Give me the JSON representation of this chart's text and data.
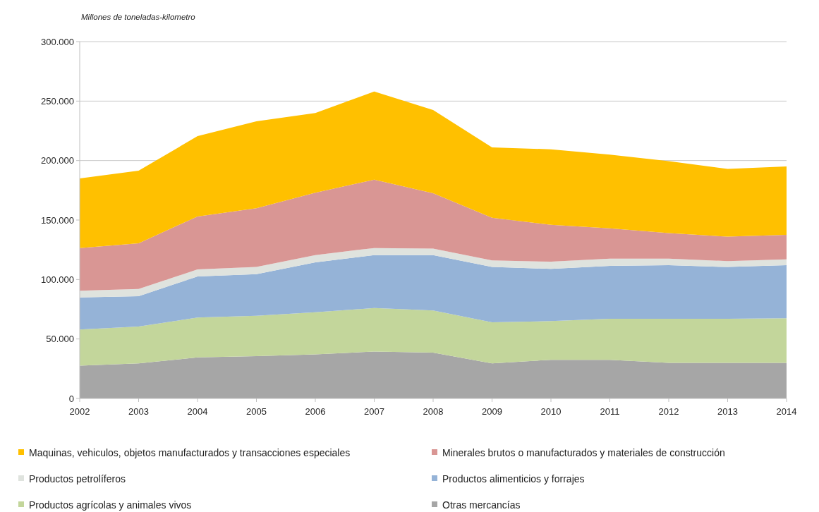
{
  "chart_data": {
    "type": "area",
    "stacked": true,
    "ylabel": "Millones de toneladas-kilometro",
    "x": [
      2002,
      2003,
      2004,
      2005,
      2006,
      2007,
      2008,
      2009,
      2010,
      2011,
      2012,
      2013,
      2014
    ],
    "xlim": [
      2002,
      2014
    ],
    "xticks": [
      2002,
      2003,
      2004,
      2005,
      2006,
      2007,
      2008,
      2009,
      2010,
      2011,
      2012,
      2013,
      2014
    ],
    "ylim": [
      0,
      300000
    ],
    "yticks": [
      0,
      {
        "value": 50000,
        "label": "50.000"
      },
      {
        "value": 100000,
        "label": "100.000"
      },
      {
        "value": 150000,
        "label": "150.000"
      },
      {
        "value": 200000,
        "label": "200.000"
      },
      {
        "value": 250000,
        "label": "250.000"
      },
      {
        "value": 300000,
        "label": "300.000"
      }
    ],
    "grid": "y",
    "legend": "bottom",
    "series": [
      {
        "name": "Otras mercancías",
        "color": "#a6a6a6",
        "values": [
          27500,
          29500,
          34500,
          35500,
          37000,
          39500,
          38500,
          29500,
          32500,
          32500,
          30000,
          30000,
          30000
        ]
      },
      {
        "name": "Productos agrícolas y animales vivos",
        "color": "#c3d69b",
        "values": [
          30500,
          31000,
          33500,
          34000,
          35500,
          36500,
          35500,
          34500,
          32500,
          34500,
          37000,
          37000,
          37500
        ]
      },
      {
        "name": "Productos alimenticios y forrajes",
        "color": "#95b3d7",
        "values": [
          27000,
          25500,
          34500,
          35000,
          42000,
          44500,
          46500,
          46500,
          44000,
          44500,
          45000,
          43500,
          44500
        ]
      },
      {
        "name": "Productos petrolíferos",
        "color": "#dfe3de",
        "values": [
          5500,
          6000,
          6000,
          6000,
          6000,
          6000,
          5500,
          5500,
          6000,
          6000,
          5500,
          5000,
          5000
        ]
      },
      {
        "name": "Minerales brutos o manufacturados y materiales de construcción",
        "color": "#d99694",
        "values": [
          36000,
          38500,
          44500,
          49500,
          52500,
          57500,
          46500,
          36000,
          31000,
          25500,
          21500,
          20500,
          20500
        ]
      },
      {
        "name": "Maquinas, vehiculos, objetos manufacturados y transacciones especiales",
        "color": "#ffc000",
        "values": [
          58500,
          61000,
          67500,
          73000,
          67000,
          74000,
          70000,
          59000,
          63500,
          62000,
          60500,
          57000,
          57500
        ]
      }
    ]
  }
}
